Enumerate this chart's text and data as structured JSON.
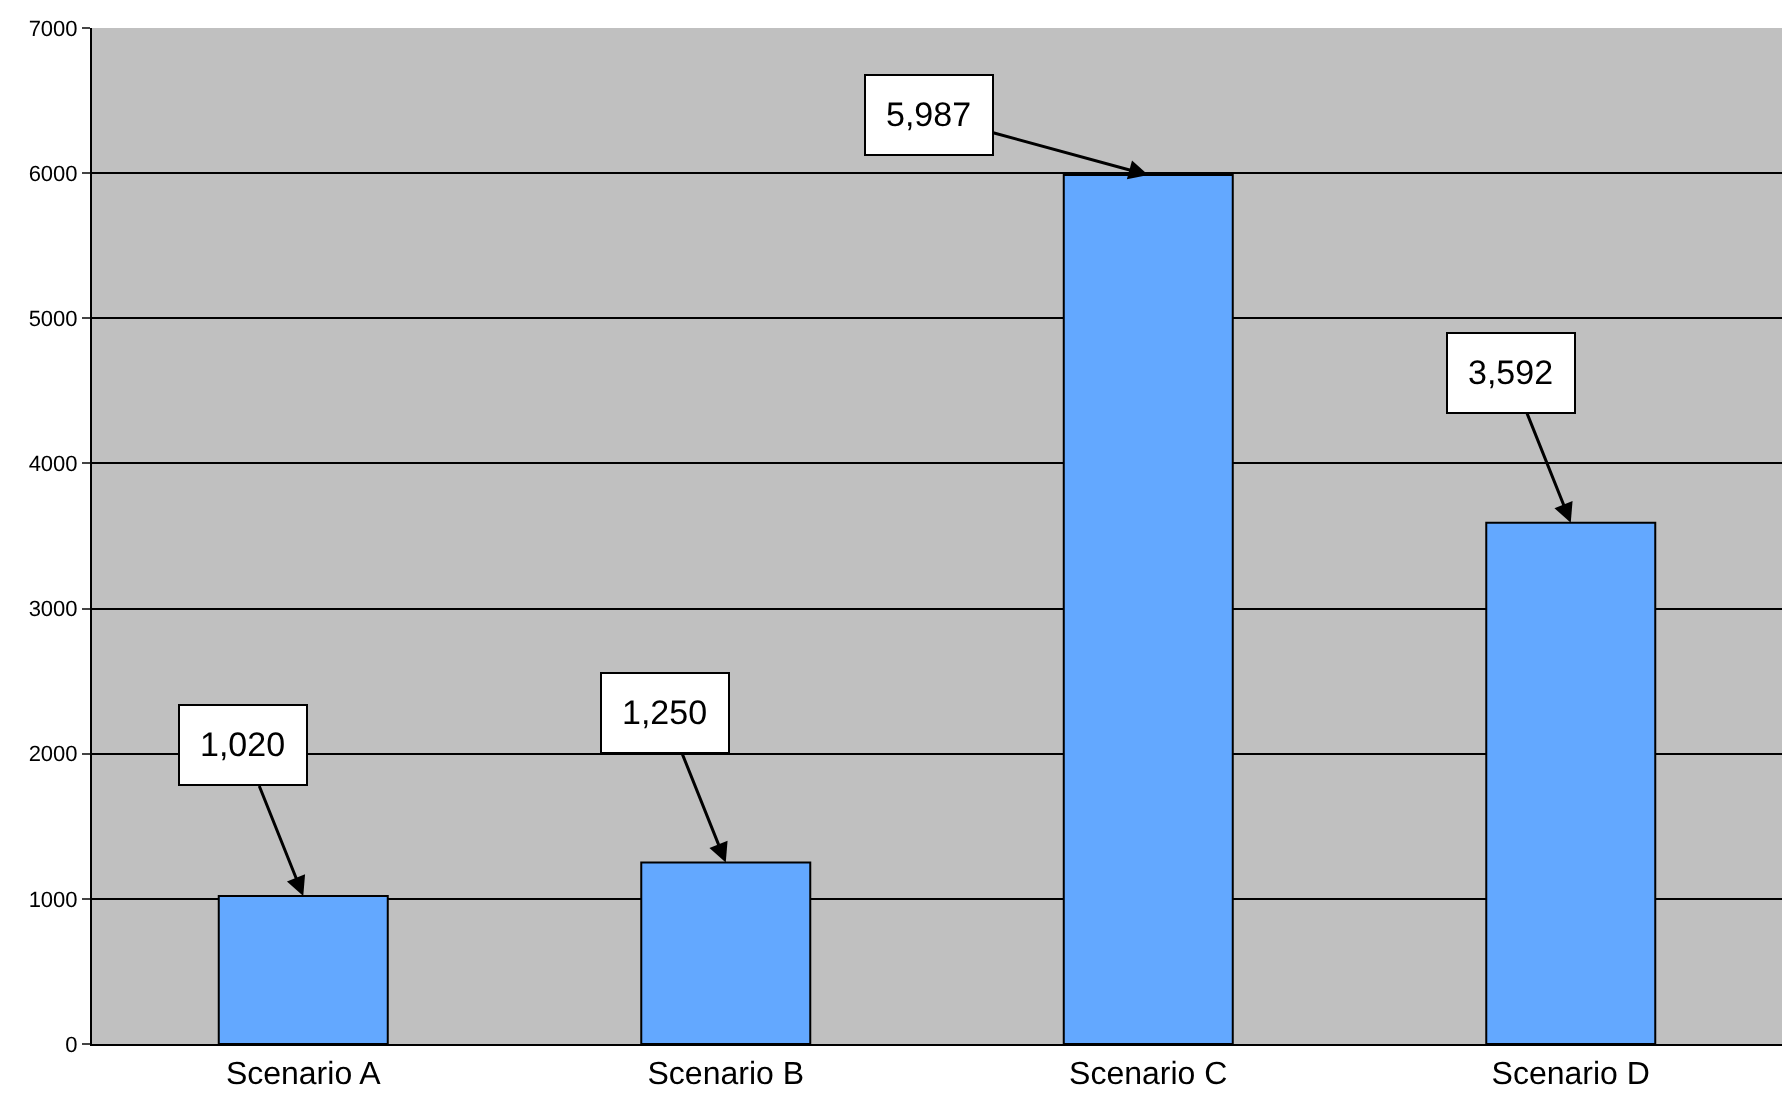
{
  "chart_data": {
    "type": "bar",
    "categories": [
      "Scenario A",
      "Scenario B",
      "Scenario C",
      "Scenario D"
    ],
    "values": [
      1020,
      1250,
      5987,
      3592
    ],
    "color": "#63a8ff",
    "ylim": [
      0,
      7000
    ],
    "yticks": [
      0,
      1000,
      2000,
      3000,
      4000,
      5000,
      6000,
      7000
    ],
    "grid": "y",
    "annotations": [
      {
        "text": "1,020",
        "x": "Scenario A",
        "y": 1020
      },
      {
        "text": "1,250",
        "x": "Scenario B",
        "y": 1250
      },
      {
        "text": "5,987",
        "x": "Scenario C",
        "y": 5987
      },
      {
        "text": "3,592",
        "x": "Scenario D",
        "y": 3592
      }
    ]
  }
}
